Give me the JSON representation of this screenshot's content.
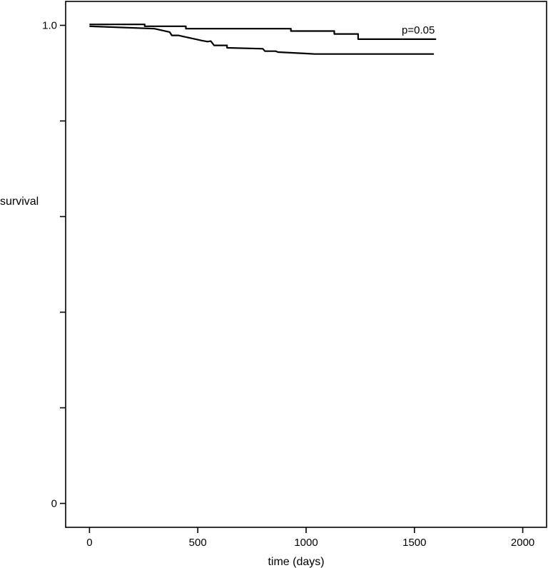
{
  "chart_data": {
    "type": "line",
    "xlabel": "time (days)",
    "ylabel": "survival",
    "xlim": [
      -110,
      2110
    ],
    "ylim": [
      -0.05,
      1.05
    ],
    "x_ticks": [
      {
        "value": 0,
        "label": "0"
      },
      {
        "value": 500,
        "label": "500"
      },
      {
        "value": 1000,
        "label": "1000"
      },
      {
        "value": 1500,
        "label": "1500"
      },
      {
        "value": 2000,
        "label": "2000"
      }
    ],
    "y_ticks": [
      {
        "value": 0,
        "label": "0"
      },
      {
        "value": 0.2,
        "label": ""
      },
      {
        "value": 0.4,
        "label": ""
      },
      {
        "value": 0.6,
        "label": ""
      },
      {
        "value": 0.8,
        "label": ""
      },
      {
        "value": 1.0,
        "label": "1.0"
      }
    ],
    "annotation": "p=0.05",
    "grid": false,
    "step_style": "kaplan-meier",
    "series": [
      {
        "points": [
          [
            0,
            1.002
          ],
          [
            255,
            1.002
          ],
          [
            255,
            0.998
          ],
          [
            445,
            0.998
          ],
          [
            445,
            0.993
          ],
          [
            930,
            0.993
          ],
          [
            930,
            0.988
          ],
          [
            1130,
            0.988
          ],
          [
            1130,
            0.982
          ],
          [
            1240,
            0.982
          ],
          [
            1240,
            0.971
          ],
          [
            1600,
            0.971
          ]
        ]
      },
      {
        "points": [
          [
            0,
            0.998
          ],
          [
            300,
            0.993
          ],
          [
            370,
            0.986
          ],
          [
            380,
            0.979
          ],
          [
            410,
            0.979
          ],
          [
            430,
            0.977
          ],
          [
            520,
            0.968
          ],
          [
            545,
            0.966
          ],
          [
            560,
            0.967
          ],
          [
            575,
            0.958
          ],
          [
            635,
            0.958
          ],
          [
            635,
            0.953
          ],
          [
            800,
            0.951
          ],
          [
            810,
            0.946
          ],
          [
            860,
            0.946
          ],
          [
            870,
            0.944
          ],
          [
            1000,
            0.941
          ],
          [
            1040,
            0.94
          ],
          [
            1040,
            0.94
          ],
          [
            1045,
            0.94
          ],
          [
            1045,
            0.94
          ],
          [
            1590,
            0.94
          ]
        ]
      }
    ]
  }
}
